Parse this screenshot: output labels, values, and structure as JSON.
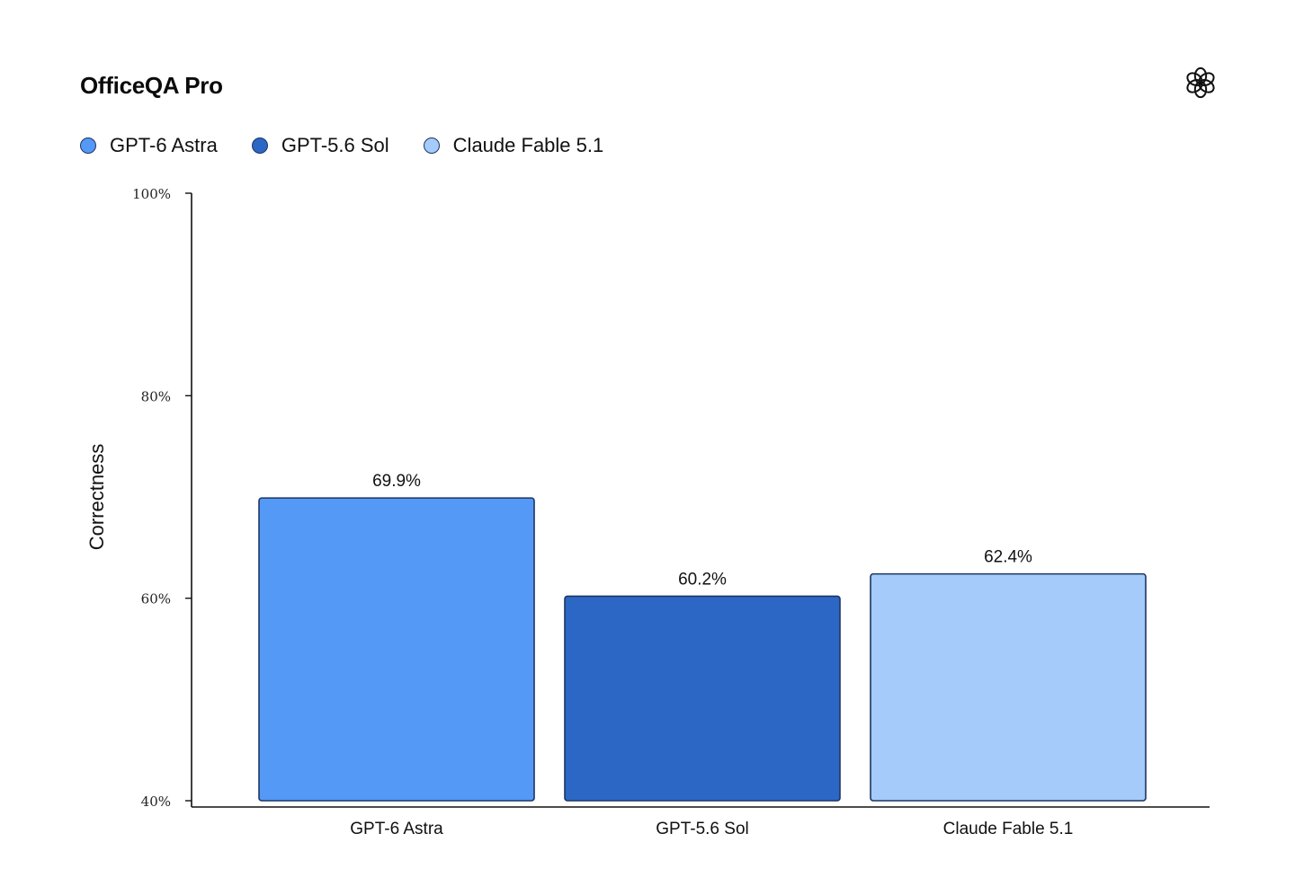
{
  "header": {
    "title": "OfficeQA Pro",
    "logo_icon": "openai-logo-icon"
  },
  "legend": {
    "items": [
      {
        "label": "GPT-6 Astra",
        "color": "#5599f7"
      },
      {
        "label": "GPT-5.6 Sol",
        "color": "#2d67c6"
      },
      {
        "label": "Claude Fable 5.1",
        "color": "#a4cbfa"
      }
    ]
  },
  "chart_data": {
    "type": "bar",
    "title": "OfficeQA Pro",
    "ylabel": "Correctness",
    "xlabel": "",
    "ylim": [
      40,
      100
    ],
    "y_ticks": [
      {
        "value": 40,
        "label": "40%"
      },
      {
        "value": 60,
        "label": "60%"
      },
      {
        "value": 80,
        "label": "80%"
      },
      {
        "value": 100,
        "label": "100%"
      }
    ],
    "categories": [
      "GPT-6 Astra",
      "GPT-5.6 Sol",
      "Claude Fable 5.1"
    ],
    "values": [
      69.9,
      60.2,
      62.4
    ],
    "data_labels": [
      "69.9%",
      "60.2%",
      "62.4%"
    ],
    "colors": [
      "#5599f7",
      "#2d67c6",
      "#a4cbfa"
    ],
    "edge_color": "#1d3560",
    "grid": false,
    "legend_position": "top-left"
  }
}
